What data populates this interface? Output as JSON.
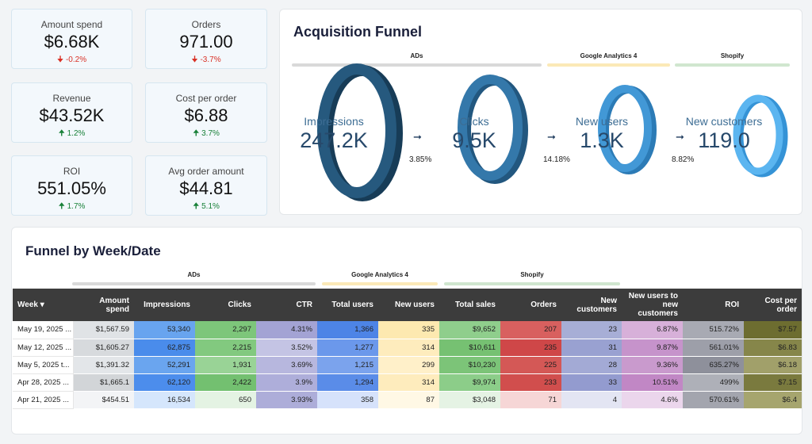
{
  "kpis": [
    {
      "label": "Amount spend",
      "value": "$6.68K",
      "delta": "-0.2%",
      "dir": "down"
    },
    {
      "label": "Orders",
      "value": "971.00",
      "delta": "-3.7%",
      "dir": "down"
    },
    {
      "label": "Revenue",
      "value": "$43.52K",
      "delta": "1.2%",
      "dir": "up"
    },
    {
      "label": "Cost per order",
      "value": "$6.88",
      "delta": "3.7%",
      "dir": "up"
    },
    {
      "label": "ROI",
      "value": "551.05%",
      "delta": "1.7%",
      "dir": "up"
    },
    {
      "label": "Avg order amount",
      "value": "$44.81",
      "delta": "5.1%",
      "dir": "up"
    }
  ],
  "funnel": {
    "title": "Acquisition Funnel",
    "groups": [
      {
        "label": "ADs",
        "color": "#d9d9d9"
      },
      {
        "label": "Google Analytics 4",
        "color": "#fbe9b7"
      },
      {
        "label": "Shopify",
        "color": "#d0e6cf"
      }
    ],
    "stages": [
      {
        "label": "Impressions",
        "value": "247.2K",
        "color": "#1f4e6e"
      },
      {
        "label": "Clicks",
        "value": "9.5K",
        "color": "#2e6e9e"
      },
      {
        "label": "New users",
        "value": "1.3K",
        "color": "#3a8fcf"
      },
      {
        "label": "New customers",
        "value": "119.0",
        "color": "#4aa8e8"
      }
    ],
    "conversions": [
      "3.85%",
      "14.18%",
      "8.82%"
    ]
  },
  "table_section": {
    "title": "Funnel by Week/Date",
    "groups": [
      {
        "label": "ADs",
        "color": "#d9d9d9"
      },
      {
        "label": "Google Analytics 4",
        "color": "#fbe9b7"
      },
      {
        "label": "Shopify",
        "color": "#d0e6cf"
      }
    ],
    "columns": [
      "Week ▾",
      "Amount spend",
      "Impressions",
      "Clicks",
      "CTR",
      "Total users",
      "New users",
      "Total sales",
      "Orders",
      "New customers",
      "New users to new customers",
      "ROI",
      "Cost per order"
    ],
    "rows": [
      [
        "May 19, 2025 ...",
        "$1,567.59",
        "53,340",
        "2,297",
        "4.31%",
        "1,366",
        "335",
        "$9,652",
        "207",
        "23",
        "6.87%",
        "515.72%",
        "$7.57"
      ],
      [
        "May 12, 2025 ...",
        "$1,605.27",
        "62,875",
        "2,215",
        "3.52%",
        "1,277",
        "314",
        "$10,611",
        "235",
        "31",
        "9.87%",
        "561.01%",
        "$6.83"
      ],
      [
        "May 5, 2025 t...",
        "$1,391.32",
        "52,291",
        "1,931",
        "3.69%",
        "1,215",
        "299",
        "$10,230",
        "225",
        "28",
        "9.36%",
        "635.27%",
        "$6.18"
      ],
      [
        "Apr 28, 2025 ...",
        "$1,665.1",
        "62,120",
        "2,422",
        "3.9%",
        "1,294",
        "314",
        "$9,974",
        "233",
        "33",
        "10.51%",
        "499%",
        "$7.15"
      ],
      [
        "Apr 21, 2025 ...",
        "$454.51",
        "16,534",
        "650",
        "3.93%",
        "358",
        "87",
        "$3,048",
        "71",
        "4",
        "4.6%",
        "570.61%",
        "$6.4"
      ]
    ],
    "cell_colors": [
      [
        "#fff",
        "#e0e3e6",
        "#68a4ef",
        "#7dc67a",
        "#a3a3d4",
        "#4d84e6",
        "#fde9b0",
        "#8fce8c",
        "#d8605f",
        "#a7aed6",
        "#d7b0d9",
        "#a8aab3",
        "#6d6d30"
      ],
      [
        "#fff",
        "#d7dadd",
        "#4a8ceb",
        "#82c97f",
        "#c4c4e4",
        "#6b98eb",
        "#feecbd",
        "#76c172",
        "#cf4748",
        "#99a1d1",
        "#c693cb",
        "#9d9fa9",
        "#86864a"
      ],
      [
        "#fff",
        "#e3e6e9",
        "#6aa5ef",
        "#99d396",
        "#b7b7de",
        "#7ba3ed",
        "#fff0c9",
        "#7cc478",
        "#d45856",
        "#a3aad5",
        "#c99acd",
        "#8e909b",
        "#a1a06a"
      ],
      [
        "#fff",
        "#d2d5d8",
        "#4c8dec",
        "#73c070",
        "#aeaeda",
        "#5a8ce8",
        "#feecbd",
        "#8ccd89",
        "#d14e4d",
        "#939bcf",
        "#c187c5",
        "#aeb0b8",
        "#7a7a3e"
      ],
      [
        "#fff",
        "#f3f4f6",
        "#d5e6fc",
        "#e4f3e3",
        "#adadd9",
        "#d6e2fb",
        "#fff8e5",
        "#e5f3e4",
        "#f6d6d6",
        "#e3e5f3",
        "#ebd6ec",
        "#a3a5ae",
        "#a6a56e"
      ]
    ]
  }
}
